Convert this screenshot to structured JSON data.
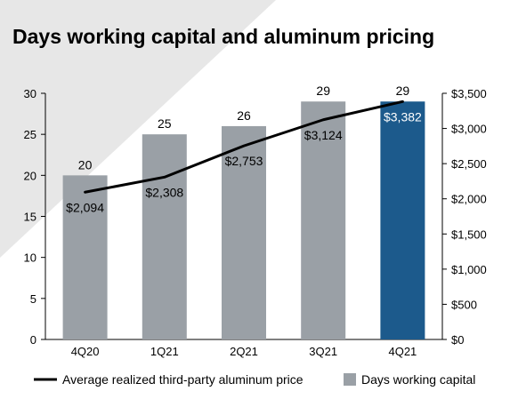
{
  "chart_data": {
    "type": "bar",
    "title": "Days working capital and aluminum pricing",
    "categories": [
      "4Q20",
      "1Q21",
      "2Q21",
      "3Q21",
      "4Q21"
    ],
    "series": [
      {
        "name": "Days working capital",
        "type": "bar",
        "axis": "left",
        "values": [
          20,
          25,
          26,
          29,
          29
        ],
        "labels": [
          "20",
          "25",
          "26",
          "29",
          "29"
        ]
      },
      {
        "name": "Average realized third-party aluminum price",
        "type": "line",
        "axis": "right",
        "values": [
          2094,
          2308,
          2753,
          3124,
          3382
        ],
        "labels": [
          "$2,094",
          "$2,308",
          "$2,753",
          "$3,124",
          "$3,382"
        ]
      }
    ],
    "left_axis": {
      "ylim": [
        0,
        30
      ],
      "ticks": [
        0,
        5,
        10,
        15,
        20,
        25,
        30
      ],
      "tick_labels": [
        "0",
        "5",
        "10",
        "15",
        "20",
        "25",
        "30"
      ]
    },
    "right_axis": {
      "ylim": [
        0,
        3500
      ],
      "ticks": [
        0,
        500,
        1000,
        1500,
        2000,
        2500,
        3000,
        3500
      ],
      "tick_labels": [
        "$0",
        "$500",
        "$1,000",
        "$1,500",
        "$2,000",
        "$2,500",
        "$3,000",
        "$3,500"
      ]
    },
    "xlabel": "",
    "ylabel": "",
    "grid": false,
    "legend_position": "bottom",
    "colors": {
      "bar": "#9aa0a6",
      "bar_highlight": "#1c5a8c",
      "line": "#000000",
      "highlight_label": "#ffffff"
    }
  }
}
